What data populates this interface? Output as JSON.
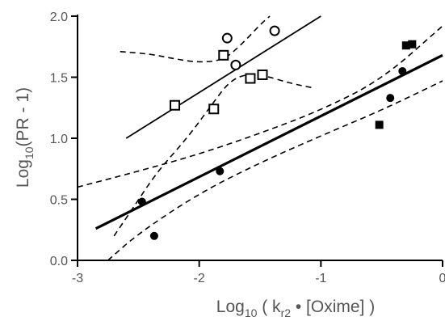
{
  "chart_data": {
    "type": "scatter",
    "xlabel_main": "Log",
    "xlabel_sub": "10",
    "xlabel_paren_open": " ( k",
    "xlabel_k_sub": "r2",
    "xlabel_rest": " • [Oxime] )",
    "ylabel_main": "Log",
    "ylabel_sub": "10",
    "ylabel_rest": "(PR - 1)",
    "xlim": [
      -3,
      0
    ],
    "ylim": [
      0,
      2
    ],
    "x_ticks": [
      -3,
      -2,
      -1,
      0
    ],
    "x_tick_labels": [
      "-3",
      "-2",
      "-1",
      "0"
    ],
    "y_ticks": [
      0,
      0.5,
      1,
      1.5,
      2
    ],
    "y_tick_labels": [
      "0.0",
      "0.5",
      "1.0",
      "1.5",
      "2.0"
    ],
    "series": [
      {
        "marker": "filled-circle",
        "points": [
          [
            -2.47,
            0.48
          ],
          [
            -2.37,
            0.2
          ],
          [
            -1.83,
            0.73
          ],
          [
            -0.43,
            1.33
          ],
          [
            -0.33,
            1.55
          ]
        ]
      },
      {
        "marker": "filled-square",
        "points": [
          [
            -0.52,
            1.11
          ],
          [
            -0.3,
            1.76
          ],
          [
            -0.25,
            1.77
          ]
        ]
      },
      {
        "marker": "open-circle",
        "points": [
          [
            -1.77,
            1.82
          ],
          [
            -1.7,
            1.6
          ],
          [
            -1.38,
            1.88
          ]
        ]
      },
      {
        "marker": "open-square",
        "points": [
          [
            -2.2,
            1.27
          ],
          [
            -1.88,
            1.24
          ],
          [
            -1.8,
            1.68
          ],
          [
            -1.58,
            1.49
          ],
          [
            -1.48,
            1.52
          ]
        ]
      }
    ],
    "fit_lines": [
      {
        "style": "thick",
        "points": [
          [
            -2.85,
            0.26
          ],
          [
            0,
            1.68
          ]
        ]
      },
      {
        "style": "thin",
        "points": [
          [
            -2.6,
            1.0
          ],
          [
            -1.0,
            2.0
          ]
        ]
      }
    ],
    "confidence_bands": [
      {
        "points": [
          [
            -3,
            0.6
          ],
          [
            -2.5,
            0.73
          ],
          [
            -2.0,
            0.87
          ],
          [
            -1.5,
            1.04
          ],
          [
            -1.0,
            1.23
          ],
          [
            -0.5,
            1.48
          ],
          [
            0,
            1.92
          ]
        ]
      },
      {
        "points": [
          [
            -2.75,
            0.0
          ],
          [
            -2.5,
            0.22
          ],
          [
            -2.0,
            0.55
          ],
          [
            -1.5,
            0.8
          ],
          [
            -1.0,
            1.02
          ],
          [
            -0.5,
            1.23
          ],
          [
            0,
            1.47
          ]
        ]
      },
      {
        "points": [
          [
            -2.65,
            1.71
          ],
          [
            -2.4,
            1.69
          ],
          [
            -2.2,
            1.65
          ],
          [
            -2.0,
            1.62
          ],
          [
            -1.8,
            1.64
          ],
          [
            -1.65,
            1.77
          ],
          [
            -1.5,
            1.93
          ],
          [
            -1.42,
            2.0
          ]
        ]
      },
      {
        "points": [
          [
            -2.7,
            0.2
          ],
          [
            -2.55,
            0.42
          ],
          [
            -2.35,
            0.72
          ],
          [
            -2.1,
            1.0
          ],
          [
            -1.9,
            1.27
          ],
          [
            -1.75,
            1.47
          ],
          [
            -1.6,
            1.53
          ],
          [
            -1.45,
            1.51
          ],
          [
            -1.25,
            1.45
          ],
          [
            -1.05,
            1.41
          ]
        ]
      }
    ]
  }
}
